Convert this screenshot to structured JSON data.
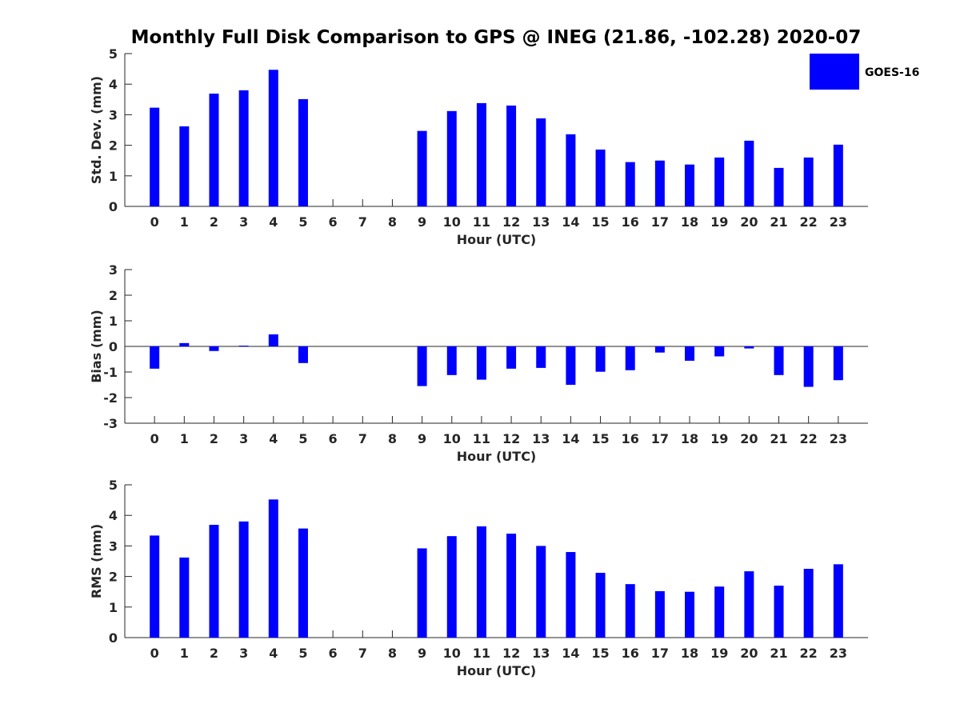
{
  "colors": {
    "bar": "#0000ff",
    "axis": "#262626",
    "background": "#ffffff"
  },
  "legend": {
    "position": "top-right",
    "entries": [
      "GOES-16"
    ]
  },
  "chart_data": {
    "title": "Monthly Full Disk Comparison to GPS @ INEG (21.86, -102.28) 2020-07",
    "categories": [
      "0",
      "1",
      "2",
      "3",
      "4",
      "5",
      "6",
      "7",
      "8",
      "9",
      "10",
      "11",
      "12",
      "13",
      "14",
      "15",
      "16",
      "17",
      "18",
      "19",
      "20",
      "21",
      "22",
      "23"
    ],
    "panels": [
      {
        "type": "bar",
        "ylabel": "Std. Dev. (mm)",
        "xlabel": "Hour (UTC)",
        "ylim": [
          0,
          5
        ],
        "yticks": [
          "0",
          "1",
          "2",
          "3",
          "4",
          "5"
        ],
        "series": [
          {
            "name": "GOES-16",
            "values": [
              3.23,
              2.62,
              3.69,
              3.8,
              4.47,
              3.51,
              null,
              null,
              null,
              2.47,
              3.12,
              3.38,
              3.3,
              2.88,
              2.36,
              1.86,
              1.45,
              1.5,
              1.37,
              1.6,
              2.15,
              1.26,
              1.6,
              2.02
            ]
          }
        ],
        "grid": false
      },
      {
        "type": "bar",
        "ylabel": "Bias (mm)",
        "xlabel": "Hour (UTC)",
        "ylim": [
          -3,
          3
        ],
        "yticks": [
          "-3",
          "-2",
          "-1",
          "0",
          "1",
          "2",
          "3"
        ],
        "series": [
          {
            "name": "GOES-16",
            "values": [
              -0.87,
              0.13,
              -0.18,
              0.03,
              0.47,
              -0.65,
              null,
              null,
              null,
              -1.55,
              -1.12,
              -1.3,
              -0.87,
              -0.84,
              -1.5,
              -0.99,
              -0.93,
              -0.24,
              -0.56,
              -0.39,
              -0.08,
              -1.12,
              -1.58,
              -1.32
            ]
          }
        ],
        "grid": false
      },
      {
        "type": "bar",
        "ylabel": "RMS (mm)",
        "xlabel": "Hour (UTC)",
        "ylim": [
          0,
          5
        ],
        "yticks": [
          "0",
          "1",
          "2",
          "3",
          "4",
          "5"
        ],
        "series": [
          {
            "name": "GOES-16",
            "values": [
              3.34,
              2.62,
              3.69,
              3.8,
              4.52,
              3.57,
              null,
              null,
              null,
              2.92,
              3.32,
              3.64,
              3.4,
              3.0,
              2.8,
              2.12,
              1.75,
              1.52,
              1.5,
              1.67,
              2.17,
              1.7,
              2.25,
              2.4
            ]
          }
        ],
        "grid": false
      }
    ]
  }
}
